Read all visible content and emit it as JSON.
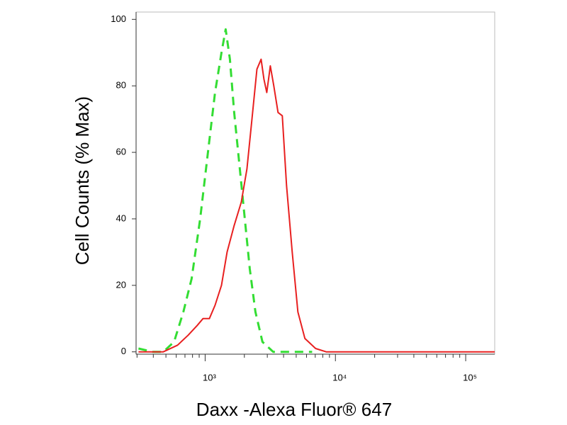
{
  "chart_data": {
    "type": "line",
    "xlabel": "Daxx -Alexa Fluor® 647",
    "ylabel": "Cell Counts (% Max)",
    "xscale": "log",
    "xlim": [
      295,
      167000
    ],
    "ylim": [
      -0.7,
      102.2
    ],
    "xticks": [
      {
        "value": 1000,
        "label": "10³"
      },
      {
        "value": 10000,
        "label": "10⁴"
      },
      {
        "value": 100000,
        "label": "10⁵"
      }
    ],
    "xminorticks": [
      300,
      400,
      500,
      600,
      700,
      800,
      900,
      2000,
      3000,
      4000,
      5000,
      6000,
      7000,
      8000,
      9000,
      20000,
      30000,
      40000,
      50000,
      60000,
      70000,
      80000,
      90000
    ],
    "yticks": [
      0,
      20,
      40,
      60,
      80,
      100
    ],
    "series": [
      {
        "color": "#33dd33",
        "dash": true,
        "x": [
          308,
          396,
          477,
          577,
          680,
          788,
          916,
          1051,
          1191,
          1334,
          1438,
          1549,
          1671,
          1846,
          2015,
          2200,
          2431,
          2754,
          3327,
          5150,
          6622
        ],
        "values": [
          1,
          0,
          0,
          3,
          12,
          22,
          40,
          60,
          78,
          90,
          97,
          88,
          72,
          55,
          40,
          25,
          12,
          3,
          0,
          0,
          0
        ]
      },
      {
        "color": "#e82020",
        "dash": false,
        "x": [
          308,
          477,
          614,
          741,
          872,
          963,
          1078,
          1191,
          1334,
          1473,
          1671,
          1893,
          2094,
          2287,
          2496,
          2688,
          2825,
          2972,
          3163,
          3366,
          3628,
          3911,
          4217,
          4660,
          5150,
          5834,
          7046,
          8493,
          48980,
          167000
        ],
        "values": [
          0,
          0,
          2,
          5,
          8,
          10,
          10,
          14,
          20,
          30,
          38,
          45,
          55,
          70,
          85,
          88,
          82,
          78,
          86,
          80,
          72,
          71,
          50,
          30,
          12,
          4,
          1,
          0,
          0,
          0
        ]
      }
    ]
  }
}
